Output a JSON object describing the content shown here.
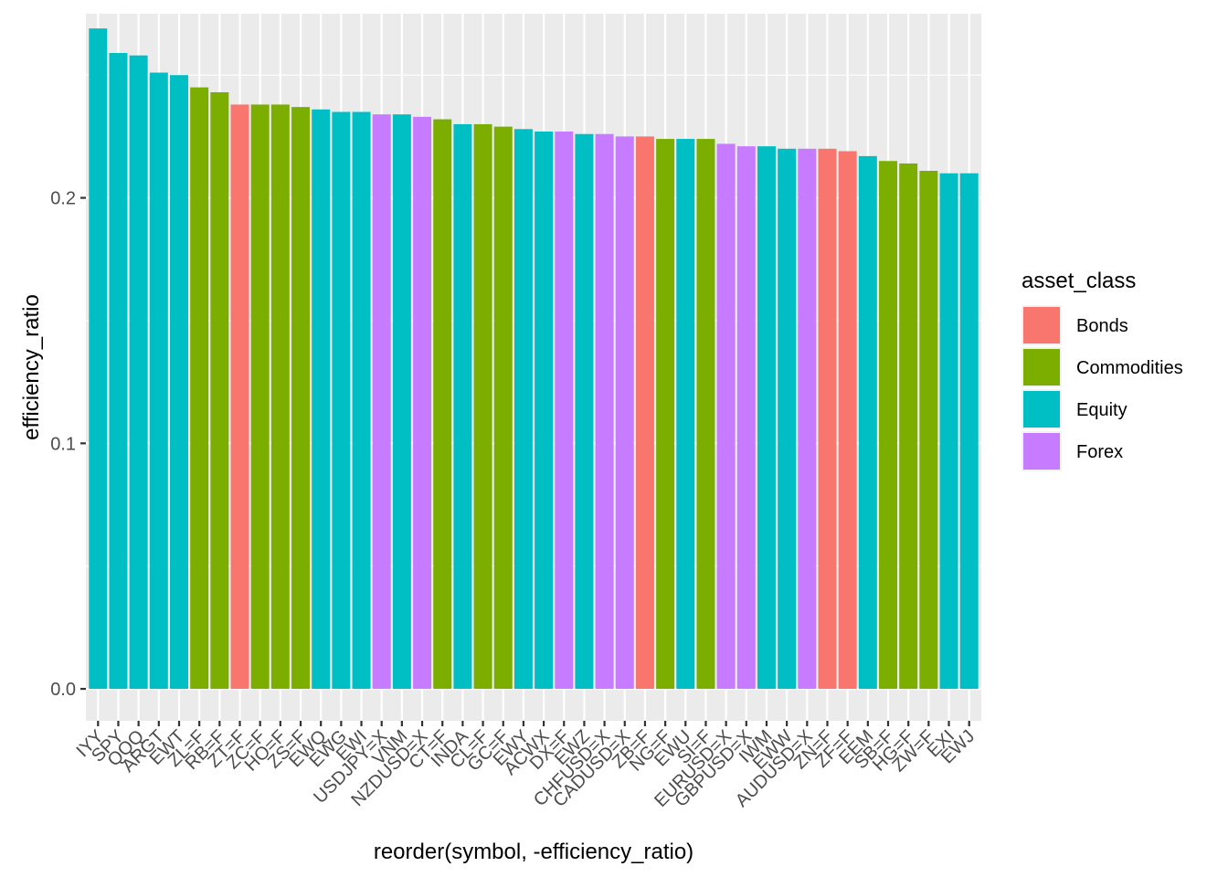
{
  "chart_data": {
    "type": "bar",
    "xlabel": "reorder(symbol, -efficiency_ratio)",
    "ylabel": "efficiency_ratio",
    "ylim": [
      -0.013,
      0.275
    ],
    "yticks": [
      0.0,
      0.1,
      0.2
    ],
    "ytick_labels": [
      "0.0",
      "0.1",
      "0.2"
    ],
    "grid": true,
    "background": "#ebebeb",
    "legend": {
      "title": "asset_class",
      "position": "right",
      "entries": [
        {
          "label": "Bonds",
          "color": "#F8766D"
        },
        {
          "label": "Commodities",
          "color": "#7CAE00"
        },
        {
          "label": "Equity",
          "color": "#00BFC4"
        },
        {
          "label": "Forex",
          "color": "#C77CFF"
        }
      ]
    },
    "categories": [
      "IYY",
      "SPY",
      "QQQ",
      "ARGT",
      "EWT",
      "ZL=F",
      "RB=F",
      "ZT=F",
      "ZC=F",
      "HO=F",
      "ZS=F",
      "EWQ",
      "EWG",
      "EWI",
      "USDJPY=X",
      "VNM",
      "NZDUSD=X",
      "CT=F",
      "INDA",
      "CL=F",
      "GC=F",
      "EWY",
      "ACWX",
      "DX=F",
      "EWZ",
      "CHFUSD=X",
      "CADUSD=X",
      "ZB=F",
      "NG=F",
      "EWU",
      "SI=F",
      "EURUSD=X",
      "GBPUSD=X",
      "IWM",
      "EWW",
      "AUDUSD=X",
      "ZN=F",
      "ZF=F",
      "EEM",
      "SB=F",
      "HG=F",
      "ZW=F",
      "EXI",
      "EWJ"
    ],
    "asset_class": [
      "Equity",
      "Equity",
      "Equity",
      "Equity",
      "Equity",
      "Commodities",
      "Commodities",
      "Bonds",
      "Commodities",
      "Commodities",
      "Commodities",
      "Equity",
      "Equity",
      "Equity",
      "Forex",
      "Equity",
      "Forex",
      "Commodities",
      "Equity",
      "Commodities",
      "Commodities",
      "Equity",
      "Equity",
      "Forex",
      "Equity",
      "Forex",
      "Forex",
      "Bonds",
      "Commodities",
      "Equity",
      "Commodities",
      "Forex",
      "Forex",
      "Equity",
      "Equity",
      "Forex",
      "Bonds",
      "Bonds",
      "Equity",
      "Commodities",
      "Commodities",
      "Commodities",
      "Equity",
      "Equity"
    ],
    "values": [
      0.269,
      0.259,
      0.258,
      0.251,
      0.25,
      0.245,
      0.243,
      0.238,
      0.238,
      0.238,
      0.237,
      0.236,
      0.235,
      0.235,
      0.234,
      0.234,
      0.233,
      0.232,
      0.23,
      0.23,
      0.229,
      0.228,
      0.227,
      0.227,
      0.226,
      0.226,
      0.225,
      0.225,
      0.224,
      0.224,
      0.224,
      0.222,
      0.221,
      0.221,
      0.22,
      0.22,
      0.22,
      0.219,
      0.217,
      0.215,
      0.214,
      0.211,
      0.21,
      0.21
    ]
  }
}
